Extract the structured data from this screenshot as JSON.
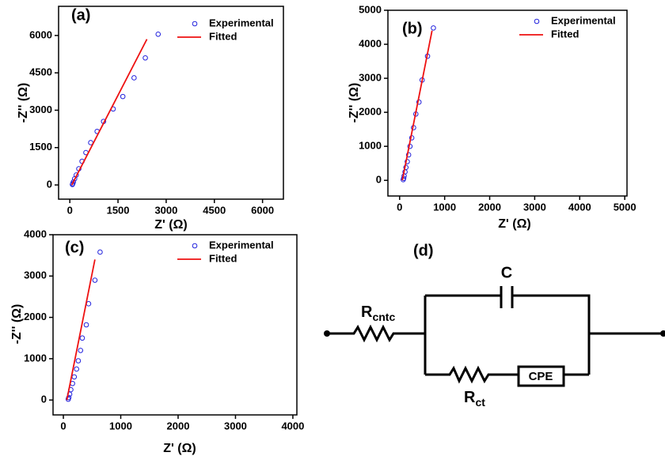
{
  "chart_data": [
    {
      "type": "scatter",
      "title": "(a)",
      "x_label": "Z' (Ω)",
      "y_label": "-Z'' (Ω)",
      "xlim": [
        -350,
        6650
      ],
      "xticks": [
        0,
        1500,
        3000,
        4500,
        6000
      ],
      "ylim": [
        -570,
        7170
      ],
      "yticks": [
        0,
        1500,
        3000,
        4500,
        6000
      ],
      "series": [
        {
          "name": "Experimental",
          "type": "scatter",
          "color": "#2222dd",
          "x": [
            2750,
            2350,
            2000,
            1650,
            1350,
            1050,
            850,
            650,
            500,
            380,
            280,
            200,
            150,
            110,
            90,
            80
          ],
          "values": [
            6050,
            5100,
            4300,
            3550,
            3050,
            2550,
            2150,
            1700,
            1300,
            950,
            650,
            400,
            250,
            120,
            50,
            20
          ]
        },
        {
          "name": "Fitted",
          "type": "line",
          "color": "#ee1111",
          "x": [
            60,
            2400
          ],
          "values": [
            0,
            5850
          ]
        }
      ]
    },
    {
      "type": "scatter",
      "title": "(b)",
      "x_label": "Z' (Ω)",
      "y_label": "-Z'' (Ω)",
      "xlim": [
        -260,
        5050
      ],
      "xticks": [
        0,
        1000,
        2000,
        3000,
        4000,
        5000
      ],
      "ylim": [
        -460,
        5000
      ],
      "yticks": [
        0,
        1000,
        2000,
        3000,
        4000,
        5000
      ],
      "series": [
        {
          "name": "Experimental",
          "type": "scatter",
          "color": "#2222dd",
          "x": [
            750,
            620,
            500,
            430,
            360,
            310,
            270,
            230,
            200,
            170,
            140,
            120,
            100,
            90,
            80
          ],
          "values": [
            4480,
            3650,
            2950,
            2300,
            1950,
            1550,
            1250,
            1000,
            750,
            550,
            380,
            250,
            130,
            60,
            20
          ]
        },
        {
          "name": "Fitted",
          "type": "line",
          "color": "#ee1111",
          "x": [
            60,
            720
          ],
          "values": [
            0,
            4400
          ]
        }
      ]
    },
    {
      "type": "scatter",
      "title": "(c)",
      "x_label": "Z' (Ω)",
      "y_label": "-Z'' (Ω)",
      "xlim": [
        -180,
        4070
      ],
      "xticks": [
        0,
        1000,
        2000,
        3000,
        4000
      ],
      "ylim": [
        -360,
        4000
      ],
      "yticks": [
        0,
        1000,
        2000,
        3000,
        4000
      ],
      "series": [
        {
          "name": "Experimental",
          "type": "scatter",
          "color": "#2222dd",
          "x": [
            640,
            550,
            440,
            400,
            330,
            300,
            260,
            230,
            190,
            160,
            130,
            110,
            95,
            85
          ],
          "values": [
            3580,
            2900,
            2330,
            1820,
            1500,
            1200,
            950,
            750,
            560,
            400,
            250,
            140,
            60,
            20
          ]
        },
        {
          "name": "Fitted",
          "type": "line",
          "color": "#ee1111",
          "x": [
            60,
            550
          ],
          "values": [
            0,
            3400
          ]
        }
      ]
    }
  ],
  "circuit": {
    "title": "(d)",
    "capacitor": "C",
    "r_contact": {
      "symbol": "R",
      "sub": "cntc"
    },
    "r_ct": {
      "symbol": "R",
      "sub": "ct"
    },
    "cpe": "CPE"
  }
}
